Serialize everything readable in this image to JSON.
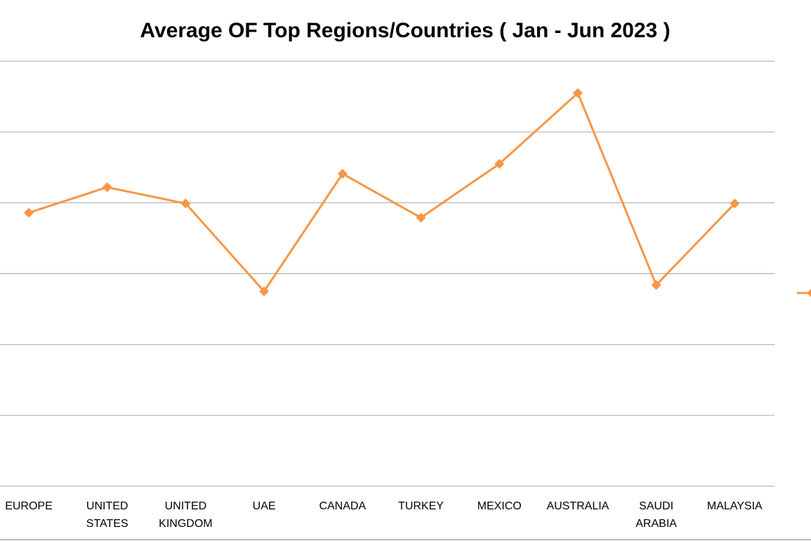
{
  "chart_data": {
    "type": "line",
    "title": "Average OF Top Regions/Countries ( Jan - Jun 2023 )",
    "categories": [
      [
        "EUROPE"
      ],
      [
        "UNITED",
        "STATES"
      ],
      [
        "UNITED",
        "KINGDOM"
      ],
      [
        "UAE"
      ],
      [
        "CANADA"
      ],
      [
        "TURKEY"
      ],
      [
        "MEXICO"
      ],
      [
        "AUSTRALIA"
      ],
      [
        "SAUDI",
        "ARABIA"
      ],
      [
        "MALAYSIA"
      ]
    ],
    "series": [
      {
        "color": "#F79646",
        "marker": "diamond",
        "values": [
          3.86,
          4.22,
          3.99,
          2.75,
          4.41,
          3.79,
          4.55,
          5.55,
          2.84,
          3.99
        ]
      }
    ],
    "ylim": [
      0,
      6
    ],
    "gridlines": "horizontal",
    "legend": "right (partially cut off)"
  }
}
